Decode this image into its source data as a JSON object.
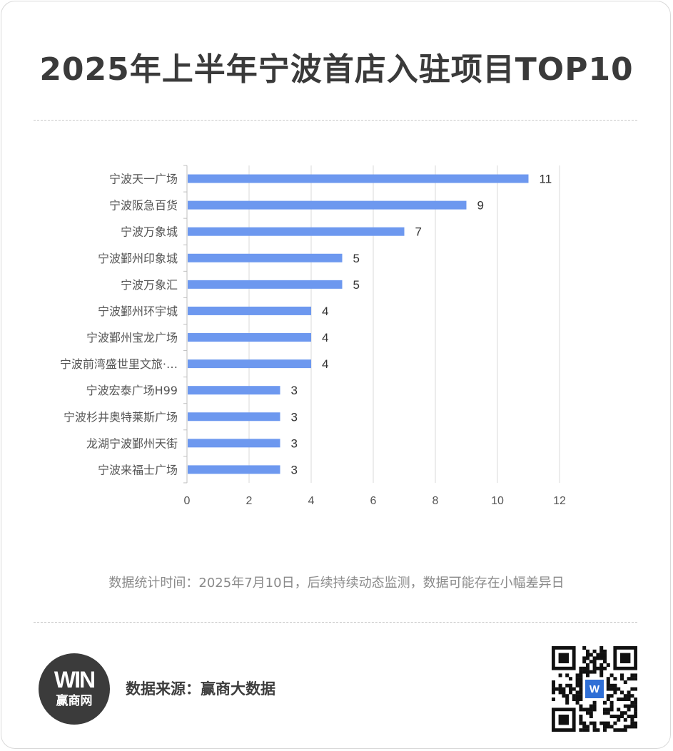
{
  "title": "2025年上半年宁波首店入驻项目TOP10",
  "note": "数据统计时间：2025年7月10日，后续持续动态监测，数据可能存在小幅差异日",
  "footer": {
    "source": "数据来源：赢商大数据",
    "logo_mark": "WIN",
    "logo_text": "赢商网",
    "qr_badge": "W"
  },
  "colors": {
    "bar": "#6d98ef",
    "grid": "#d9d9d9",
    "text": "#555555"
  },
  "chart_data": {
    "type": "bar",
    "orientation": "horizontal",
    "title": "2025年上半年宁波首店入驻项目TOP10",
    "categories": [
      "宁波天一广场",
      "宁波阪急百货",
      "宁波万象城",
      "宁波鄞州印象城",
      "宁波万象汇",
      "宁波鄞州环宇城",
      "宁波鄞州宝龙广场",
      "宁波前湾盛世里文旅·…",
      "宁波宏泰广场H99",
      "宁波杉井奥特莱斯广场",
      "龙湖宁波鄞州天街",
      "宁波来福士广场"
    ],
    "values": [
      11,
      9,
      7,
      5,
      5,
      4,
      4,
      4,
      3,
      3,
      3,
      3
    ],
    "xlim": [
      0,
      12
    ],
    "xticks": [
      0,
      2,
      4,
      6,
      8,
      10,
      12
    ],
    "grid": true,
    "data_labels": true
  }
}
